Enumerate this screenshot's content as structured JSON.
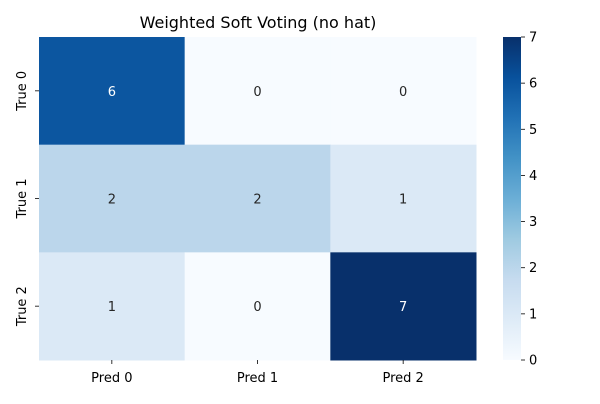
{
  "chart_data": {
    "type": "heatmap",
    "title": "Weighted Soft Voting (no hat)",
    "xlabel": "",
    "ylabel": "",
    "x_categories": [
      "Pred 0",
      "Pred 1",
      "Pred 2"
    ],
    "y_categories": [
      "True 0",
      "True 1",
      "True 2"
    ],
    "values": [
      [
        6,
        0,
        0
      ],
      [
        2,
        2,
        1
      ],
      [
        1,
        0,
        7
      ]
    ],
    "colorbar": {
      "range": [
        0,
        7
      ],
      "ticks": [
        0,
        1,
        2,
        3,
        4,
        5,
        6,
        7
      ],
      "colormap": "Blues"
    },
    "annotation_colors": {
      "dark_cell_text": "#ffffff",
      "light_cell_text": "#262626"
    },
    "grid": false,
    "legend": "none"
  }
}
